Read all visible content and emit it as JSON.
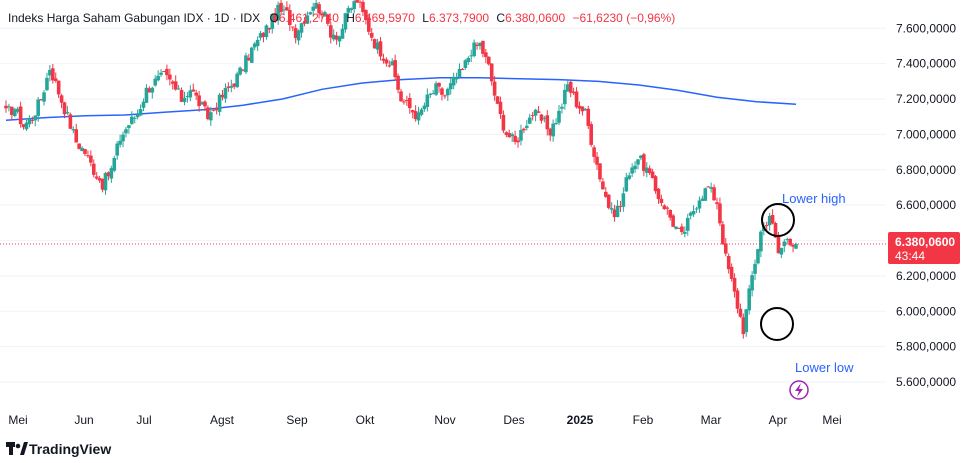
{
  "header": {
    "symbol": "Indeks Harga Saham Gabungan IDX · 1D · IDX",
    "o_label": "O",
    "o_value": "6.461,2740",
    "h_label": "H",
    "h_value": "6.469,5970",
    "l_label": "L",
    "l_value": "6.373,7900",
    "c_label": "C",
    "c_value": "6.380,0600",
    "change": "−61,6230 (−0,96%)"
  },
  "price_tag": {
    "price": "6.380,0600",
    "countdown": "43:44"
  },
  "annotations": {
    "lower_high": "Lower high",
    "lower_low": "Lower low"
  },
  "branding": {
    "logo_text": "TradingView"
  },
  "colors": {
    "up": "#26a69a",
    "down": "#f23645",
    "ma": "#2962ff",
    "annotation": "#2962ff",
    "price_tag": "#f23645"
  },
  "chart_data": {
    "type": "candlestick",
    "interval": "1D",
    "x_tick_labels": [
      "Mei",
      "Jun",
      "Jul",
      "Agst",
      "Sep",
      "Okt",
      "Nov",
      "Des",
      "2025",
      "Feb",
      "Mar",
      "Apr",
      "Mei"
    ],
    "y_tick_labels": [
      "7.600,0000",
      "7.400,0000",
      "7.200,0000",
      "7.000,0000",
      "6.800,0000",
      "6.600,0000",
      "6.400,0000",
      "6.200,0000",
      "6.000,0000",
      "5.800,0000",
      "5.600,0000"
    ],
    "y_ticks": [
      7600,
      7400,
      7200,
      7000,
      6800,
      6600,
      6400,
      6200,
      6000,
      5800,
      5600
    ],
    "ylim": [
      5470,
      7760
    ],
    "last_close": 6380.06,
    "series": [
      {
        "kind": "candles",
        "path": [
          7120,
          7150,
          7050,
          7100,
          7200,
          7380,
          7240,
          7100,
          6960,
          6900,
          6800,
          6720,
          6800,
          6980,
          7060,
          7120,
          7250,
          7300,
          7330,
          7280,
          7200,
          7260,
          7180,
          7100,
          7170,
          7240,
          7300,
          7380,
          7480,
          7550,
          7620,
          7700,
          7680,
          7580,
          7660,
          7740,
          7700,
          7580,
          7560,
          7700,
          7760,
          7640,
          7520,
          7450,
          7380,
          7200,
          7150,
          7100,
          7200,
          7260,
          7220,
          7300,
          7360,
          7480,
          7510,
          7380,
          7150,
          7010,
          6950,
          7050,
          7120,
          7080,
          7020,
          7120,
          7280,
          7180,
          7120,
          6900,
          6700,
          6550,
          6600,
          6800,
          6870,
          6800,
          6680,
          6600,
          6500,
          6420,
          6540,
          6650,
          6700,
          6620,
          6300,
          6100,
          5900,
          6200,
          6450,
          6550,
          6330,
          6420,
          6380
        ]
      },
      {
        "kind": "moving-average",
        "values": [
          7080,
          7095,
          7105,
          7110,
          7125,
          7140,
          7165,
          7200,
          7255,
          7290,
          7310,
          7320,
          7320,
          7315,
          7310,
          7300,
          7280,
          7250,
          7210,
          7185,
          7170
        ]
      }
    ]
  }
}
